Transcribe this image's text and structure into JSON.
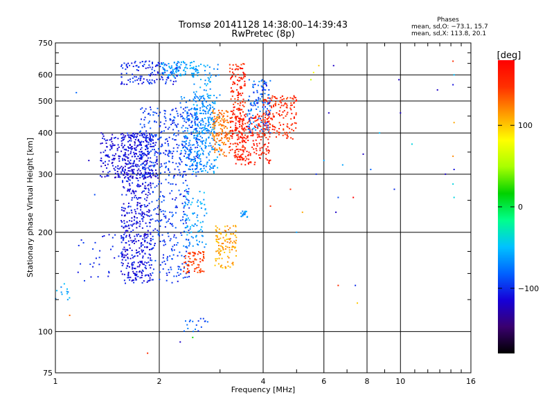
{
  "chart_data": {
    "type": "scatter",
    "title": "Tromsø 20141128 14:38:00–14:39:43",
    "subtitle": "RwPretec (8p)",
    "xlabel": "Frequency [MHz]",
    "ylabel": "Stationary phase Virtual Height [km]",
    "x_scale": "log",
    "y_scale": "log",
    "xlim": [
      1,
      16
    ],
    "ylim": [
      75,
      750
    ],
    "x_ticks": [
      1,
      2,
      4,
      6,
      8,
      10,
      16
    ],
    "x_tick_labels": [
      "1",
      "2",
      "4",
      "6",
      "8",
      "10",
      "16"
    ],
    "y_ticks": [
      75,
      100,
      200,
      300,
      400,
      500,
      600,
      750
    ],
    "y_tick_labels": [
      "75",
      "100",
      "200",
      "300",
      "400",
      "500",
      "600",
      "750"
    ],
    "grid": true,
    "stats": {
      "title": "Phases",
      "line_o": "mean, sd,O: −73.1, 15.7",
      "line_x": "mean, sd,X: 113.8, 20.1"
    },
    "colorbar": {
      "label": "[deg]",
      "range": [
        -180,
        180
      ],
      "ticks": [
        100,
        0,
        -100
      ],
      "tick_labels": [
        "100",
        "0",
        "−100"
      ],
      "colors": [
        "#000000",
        "#3a006f",
        "#1600d8",
        "#0062ff",
        "#00c2ff",
        "#00ff8c",
        "#00d200",
        "#a8ff00",
        "#ffff00",
        "#ff9a00",
        "#ff3000",
        "#ff0000"
      ]
    },
    "clusters": [
      {
        "x": [
          1.55,
          1.9
        ],
        "y": [
          140,
          400
        ],
        "n": 520,
        "phase": [
          -125,
          -95
        ]
      },
      {
        "x": [
          1.35,
          2.0
        ],
        "y": [
          290,
          400
        ],
        "n": 280,
        "phase": [
          -125,
          -100
        ]
      },
      {
        "x": [
          1.75,
          2.6
        ],
        "y": [
          290,
          480
        ],
        "n": 320,
        "phase": [
          -110,
          -80
        ]
      },
      {
        "x": [
          2.3,
          2.9
        ],
        "y": [
          310,
          520
        ],
        "n": 220,
        "phase": [
          -85,
          -60
        ]
      },
      {
        "x": [
          2.5,
          3.0
        ],
        "y": [
          300,
          660
        ],
        "n": 160,
        "phase": [
          -75,
          -50
        ]
      },
      {
        "x": [
          1.55,
          2.3
        ],
        "y": [
          560,
          660
        ],
        "n": 130,
        "phase": [
          -115,
          -90
        ]
      },
      {
        "x": [
          2.0,
          2.6
        ],
        "y": [
          590,
          660
        ],
        "n": 90,
        "phase": [
          -75,
          -50
        ]
      },
      {
        "x": [
          1.9,
          2.45
        ],
        "y": [
          140,
          290
        ],
        "n": 200,
        "phase": [
          -110,
          -80
        ]
      },
      {
        "x": [
          2.35,
          2.75
        ],
        "y": [
          180,
          270
        ],
        "n": 80,
        "phase": [
          -75,
          -45
        ]
      },
      {
        "x": [
          2.35,
          2.7
        ],
        "y": [
          150,
          175
        ],
        "n": 70,
        "phase": [
          130,
          160
        ]
      },
      {
        "x": [
          2.9,
          3.35
        ],
        "y": [
          155,
          210
        ],
        "n": 110,
        "phase": [
          95,
          125
        ]
      },
      {
        "x": [
          2.85,
          3.2
        ],
        "y": [
          340,
          470
        ],
        "n": 130,
        "phase": [
          110,
          140
        ]
      },
      {
        "x": [
          3.2,
          3.55
        ],
        "y": [
          330,
          650
        ],
        "n": 200,
        "phase": [
          140,
          175
        ]
      },
      {
        "x": [
          3.3,
          4.2
        ],
        "y": [
          320,
          460
        ],
        "n": 200,
        "phase": [
          150,
          175
        ]
      },
      {
        "x": [
          4.0,
          5.0
        ],
        "y": [
          380,
          520
        ],
        "n": 160,
        "phase": [
          140,
          170
        ]
      },
      {
        "x": [
          3.6,
          4.2
        ],
        "y": [
          400,
          580
        ],
        "n": 120,
        "phase": [
          -110,
          -60
        ]
      },
      {
        "x": [
          1.15,
          1.7
        ],
        "y": [
          140,
          200
        ],
        "n": 35,
        "phase": [
          -110,
          -90
        ]
      },
      {
        "x": [
          2.3,
          2.8
        ],
        "y": [
          100,
          110
        ],
        "n": 18,
        "phase": [
          -100,
          -70
        ]
      },
      {
        "x": [
          3.45,
          3.6
        ],
        "y": [
          222,
          232
        ],
        "n": 18,
        "phase": [
          -75,
          -55
        ]
      },
      {
        "x": [
          1.0,
          1.1
        ],
        "y": [
          124,
          140
        ],
        "n": 12,
        "phase": [
          -75,
          -45
        ]
      }
    ],
    "sparse_points": [
      {
        "x": 1.15,
        "y": 530,
        "phase": -80
      },
      {
        "x": 1.25,
        "y": 330,
        "phase": -120
      },
      {
        "x": 1.3,
        "y": 260,
        "phase": -90
      },
      {
        "x": 1.1,
        "y": 112,
        "phase": 130
      },
      {
        "x": 1.85,
        "y": 86,
        "phase": 150
      },
      {
        "x": 2.3,
        "y": 93,
        "phase": -120
      },
      {
        "x": 2.5,
        "y": 96,
        "phase": 20
      },
      {
        "x": 4.2,
        "y": 240,
        "phase": 150
      },
      {
        "x": 4.8,
        "y": 270,
        "phase": 150
      },
      {
        "x": 5.0,
        "y": 200,
        "phase": -60
      },
      {
        "x": 5.2,
        "y": 230,
        "phase": 110
      },
      {
        "x": 5.7,
        "y": 300,
        "phase": -100
      },
      {
        "x": 6.0,
        "y": 330,
        "phase": -60
      },
      {
        "x": 6.2,
        "y": 460,
        "phase": -120
      },
      {
        "x": 6.4,
        "y": 640,
        "phase": -120
      },
      {
        "x": 6.5,
        "y": 230,
        "phase": -120
      },
      {
        "x": 6.6,
        "y": 255,
        "phase": -90
      },
      {
        "x": 6.6,
        "y": 138,
        "phase": 150
      },
      {
        "x": 6.8,
        "y": 320,
        "phase": -60
      },
      {
        "x": 7.3,
        "y": 255,
        "phase": 180
      },
      {
        "x": 7.4,
        "y": 138,
        "phase": -100
      },
      {
        "x": 7.5,
        "y": 122,
        "phase": 100
      },
      {
        "x": 7.8,
        "y": 345,
        "phase": -120
      },
      {
        "x": 8.2,
        "y": 310,
        "phase": -80
      },
      {
        "x": 8.7,
        "y": 400,
        "phase": -50
      },
      {
        "x": 9.6,
        "y": 270,
        "phase": -100
      },
      {
        "x": 9.9,
        "y": 580,
        "phase": -120
      },
      {
        "x": 10.0,
        "y": 460,
        "phase": -120
      },
      {
        "x": 10.8,
        "y": 370,
        "phase": -40
      },
      {
        "x": 12.8,
        "y": 540,
        "phase": -120
      },
      {
        "x": 13.5,
        "y": 300,
        "phase": -120
      },
      {
        "x": 14.2,
        "y": 660,
        "phase": 150
      },
      {
        "x": 14.3,
        "y": 600,
        "phase": -50
      },
      {
        "x": 14.2,
        "y": 560,
        "phase": -110
      },
      {
        "x": 14.3,
        "y": 430,
        "phase": 110
      },
      {
        "x": 14.2,
        "y": 340,
        "phase": 120
      },
      {
        "x": 14.3,
        "y": 310,
        "phase": -110
      },
      {
        "x": 14.2,
        "y": 280,
        "phase": -40
      },
      {
        "x": 14.3,
        "y": 255,
        "phase": -40
      },
      {
        "x": 5.6,
        "y": 610,
        "phase": 80
      },
      {
        "x": 5.5,
        "y": 580,
        "phase": 60
      },
      {
        "x": 5.8,
        "y": 640,
        "phase": 100
      }
    ]
  }
}
